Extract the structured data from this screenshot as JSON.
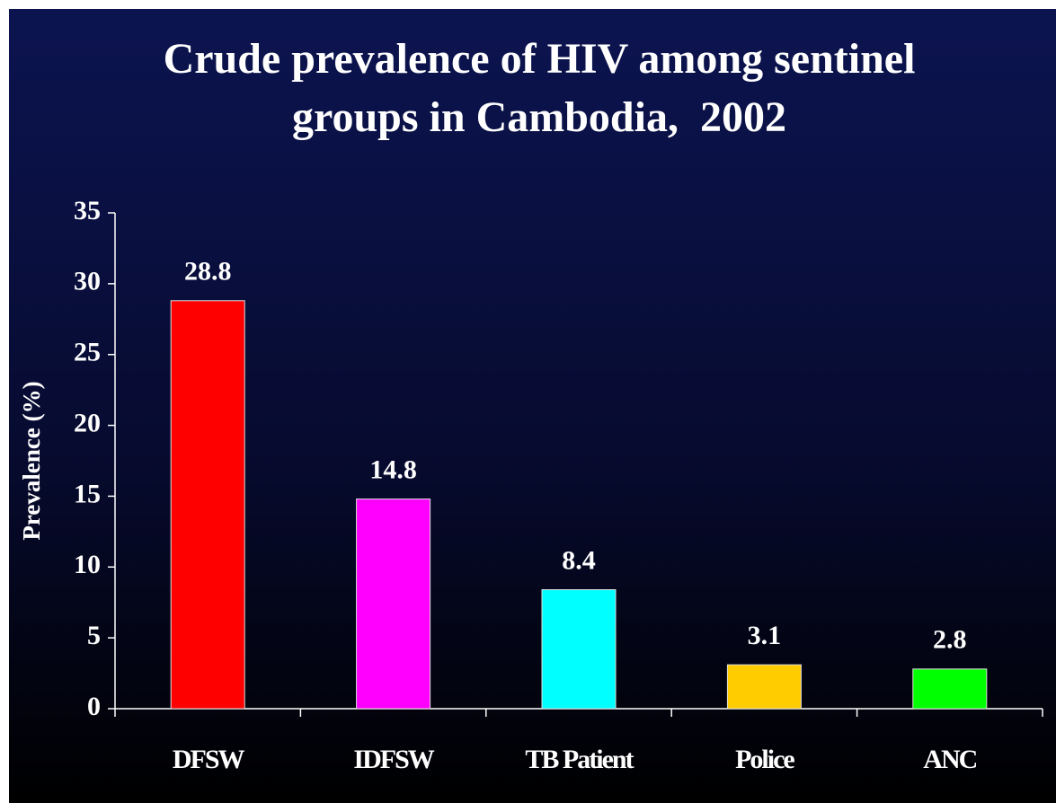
{
  "chart_data": {
    "type": "bar",
    "title": "Crude prevalence of HIV among sentinel groups in Cambodia,  2002",
    "y_label": "Prevalence (%)",
    "categories": [
      "DFSW",
      "IDFSW",
      "TB Patient",
      "Police",
      "ANC"
    ],
    "values": [
      28.8,
      14.8,
      8.4,
      3.1,
      2.8
    ],
    "colors": [
      "#ff0000",
      "#ff00ff",
      "#00ffff",
      "#ffcc00",
      "#00ff00"
    ],
    "ylim": [
      0,
      35
    ],
    "yticks": [
      0,
      5,
      10,
      15,
      20,
      25,
      30,
      35
    ],
    "grid": false
  }
}
